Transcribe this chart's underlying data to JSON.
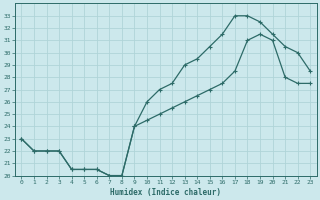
{
  "xlabel": "Humidex (Indice chaleur)",
  "background_color": "#cce8ec",
  "grid_color": "#b0d4d8",
  "line_color": "#2d6b68",
  "xlim": [
    -0.5,
    23.5
  ],
  "ylim": [
    20,
    34
  ],
  "xticks": [
    0,
    1,
    2,
    3,
    4,
    5,
    6,
    7,
    8,
    9,
    10,
    11,
    12,
    13,
    14,
    15,
    16,
    17,
    18,
    19,
    20,
    21,
    22,
    23
  ],
  "yticks": [
    20,
    21,
    22,
    23,
    24,
    25,
    26,
    27,
    28,
    29,
    30,
    31,
    32,
    33
  ],
  "curve1_x": [
    0,
    1,
    2,
    3,
    4,
    5,
    6,
    7,
    8,
    9,
    10,
    11,
    12,
    13,
    14,
    15,
    16,
    17,
    18,
    19,
    20,
    21,
    22,
    23
  ],
  "curve1_y": [
    23.0,
    22.0,
    22.0,
    22.0,
    20.5,
    20.5,
    20.5,
    20.0,
    20.0,
    24.0,
    26.0,
    27.0,
    27.5,
    29.0,
    29.5,
    30.5,
    31.5,
    33.0,
    33.0,
    32.5,
    31.5,
    30.5,
    30.0,
    28.5
  ],
  "curve2_x": [
    0,
    1,
    2,
    3,
    4,
    5,
    6,
    7,
    8,
    9,
    10,
    11,
    12,
    13,
    14,
    15,
    16,
    17,
    18,
    19,
    20,
    21,
    22,
    23
  ],
  "curve2_y": [
    23.0,
    22.0,
    22.0,
    22.0,
    20.5,
    20.5,
    20.5,
    20.0,
    20.0,
    24.0,
    24.5,
    25.0,
    25.5,
    26.0,
    26.5,
    27.0,
    27.5,
    28.5,
    31.0,
    31.5,
    31.0,
    28.0,
    27.5,
    27.5
  ]
}
